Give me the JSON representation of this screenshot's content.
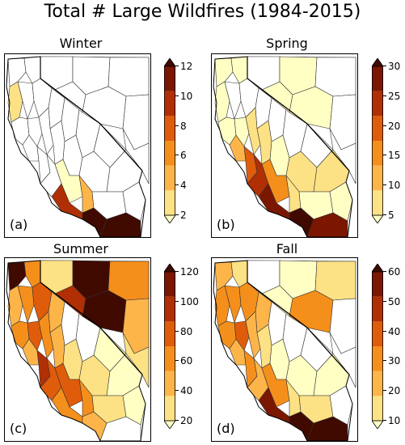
{
  "title": "Total # Large Wildfires (1984-2015)",
  "colors": [
    "#ffffc4",
    "#fde185",
    "#fdb54a",
    "#f58f1b",
    "#df5c0b",
    "#b12f04",
    "#7b1700",
    "#400a00"
  ],
  "panels": [
    {
      "name": "Winter",
      "letter": "(a)",
      "ticks": [
        "12",
        "10",
        "8",
        "6",
        "4",
        "2"
      ],
      "vmin": 2,
      "vmax": 12
    },
    {
      "name": "Spring",
      "letter": "(b)",
      "ticks": [
        "30",
        "25",
        "20",
        "15",
        "10",
        "5"
      ],
      "vmin": 5,
      "vmax": 30
    },
    {
      "name": "Summer",
      "letter": "(c)",
      "ticks": [
        "120",
        "100",
        "80",
        "60",
        "40",
        "20"
      ],
      "vmin": 20,
      "vmax": 120
    },
    {
      "name": "Fall",
      "letter": "(d)",
      "ticks": [
        "60",
        "50",
        "40",
        "30",
        "20",
        "10"
      ],
      "vmin": 10,
      "vmax": 60
    }
  ]
}
